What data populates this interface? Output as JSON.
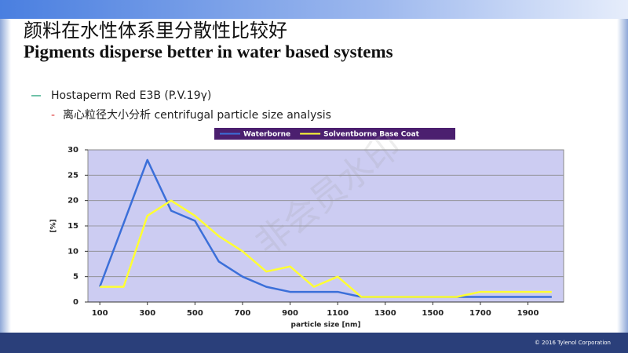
{
  "slide": {
    "title_cn": "颜料在水性体系里分散性比较好",
    "title_en": "Pigments disperse better in water based systems",
    "bullets": [
      "Hostaperm Red E3B (P.V.19γ)",
      "离心粒径大小分析 centrifugal particle size analysis"
    ],
    "watermark": "非会员水印",
    "footer": "© 2016 Tylenol Corporation"
  },
  "chart_data": {
    "type": "line",
    "xlabel": "particle size [nm]",
    "ylabel": "[%]",
    "x": [
      100,
      200,
      300,
      400,
      500,
      600,
      700,
      800,
      900,
      1000,
      1100,
      1200,
      1300,
      1400,
      1500,
      1600,
      1700,
      1800,
      1900,
      2000
    ],
    "series": [
      {
        "name": "Waterborne",
        "color": "#3b6fd9",
        "values": [
          3,
          15.5,
          28,
          18,
          16,
          8,
          5,
          3,
          2,
          2,
          2,
          1,
          1,
          1,
          1,
          1,
          1,
          1,
          1,
          1
        ]
      },
      {
        "name": "Solventborne Base Coat",
        "color": "#ffff33",
        "values": [
          3,
          3,
          17,
          20,
          17,
          13,
          10,
          6,
          7,
          3,
          5,
          1,
          1,
          1,
          1,
          1,
          2,
          2,
          2,
          2
        ]
      }
    ],
    "xlim": [
      50,
      2050
    ],
    "xticks": [
      100,
      300,
      500,
      700,
      900,
      1100,
      1300,
      1500,
      1700,
      1900
    ],
    "ylim": [
      0,
      30
    ],
    "yticks": [
      0,
      5,
      10,
      15,
      20,
      25,
      30
    ],
    "grid": true,
    "plot_background": "#ccccf2"
  }
}
